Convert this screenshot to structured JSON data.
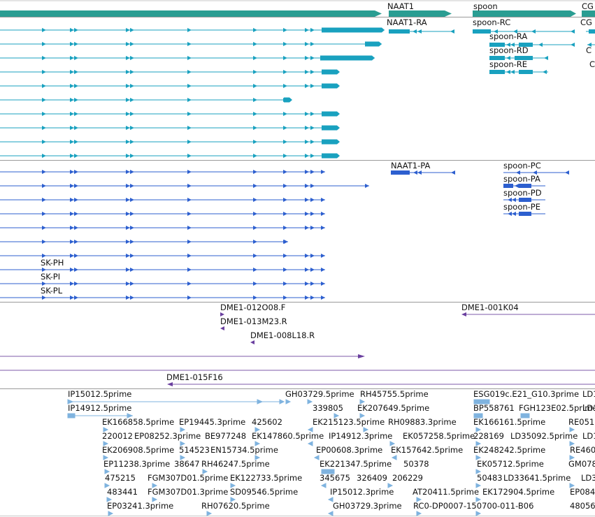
{
  "colors": {
    "gene": "#2a9d92",
    "transcript": "#19a1bf",
    "protein": "#2d5fcf",
    "clone": "#6a3f9f",
    "clone_line": "#7e5aa8",
    "est": "#7fb3df",
    "divider": "#9a9a9a"
  },
  "genes": {
    "labels": [
      "NAAT1",
      "spoon",
      "CG"
    ]
  },
  "transcripts": {
    "labels": [
      "NAAT1-RA",
      "spoon-RC",
      "spoon-RA",
      "spoon-RD",
      "spoon-RE",
      "CG",
      "C",
      "C"
    ]
  },
  "proteins": {
    "labels": [
      "NAAT1-PA",
      "spoon-PC",
      "spoon-PA",
      "spoon-PD",
      "spoon-PE",
      "SK-PH",
      "SK-PI",
      "SK-PL"
    ]
  },
  "clones": {
    "labels": [
      "DME1-012O08.F",
      "DME1-013M23.R",
      "DME1-008L18.R",
      "DME1-001K04",
      "DME1-015F16"
    ]
  },
  "ests": {
    "labels": [
      "IP15012.5prime",
      "GH03729.5prime",
      "RH45755.5prime",
      "ESG019c.E21_G10.3prime",
      "LD1",
      "IP14912.5prime",
      "339805",
      "EK207649.5prime",
      "BP558761",
      "FGH123E02.5prime",
      "LD1",
      "EK166858.5prime",
      "EP19445.3prime",
      "425602",
      "EK215123.5prime",
      "RH09883.3prime",
      "EK166161.5prime",
      "RE051",
      "220012",
      "EP08252.3prime",
      "BE977248",
      "EK147860.5prime",
      "IP14912.3prime",
      "EK057258.5prime",
      "228169",
      "LD35092.5prime",
      "LD1",
      "EK206908.5prime",
      "514523",
      "EN15734.5prime",
      "EP00608.3prime",
      "EK157642.5prime",
      "EK248242.5prime",
      "RE460",
      "EP11238.3prime",
      "38647",
      "RH46247.5prime",
      "EK221347.5prime",
      "50378",
      "EK05712.5prime",
      "GM078",
      "475215",
      "FGM307D01.5prime",
      "EK122733.5prime",
      "345675",
      "326409",
      "206229",
      "50483",
      "LD33641.5prime",
      "LD3",
      "483441",
      "FGM307D01.3prime",
      "SD09546.5prime",
      "IP15012.3prime",
      "AT20411.5prime",
      "EK172904.5prime",
      "EP084",
      "EP03241.3prime",
      "RH07620.5prime",
      "GH03729.3prime",
      "RC0-DP0007-150700-011-B06",
      "48056"
    ]
  }
}
